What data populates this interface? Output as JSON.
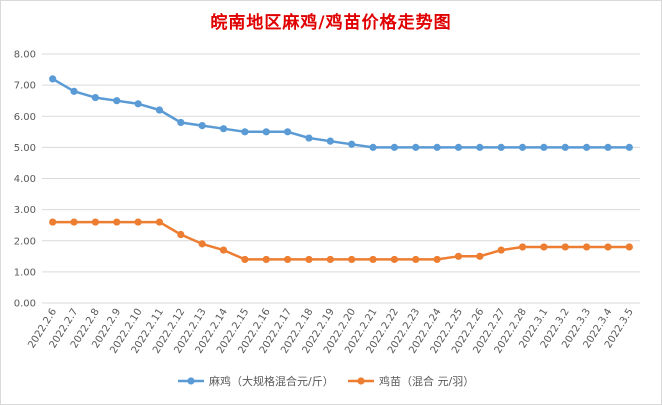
{
  "chart_data": {
    "type": "line",
    "title": "皖南地区麻鸡/鸡苗价格走势图",
    "categories": [
      "2022.2.6",
      "2022.2.7",
      "2022.2.8",
      "2022.2.9",
      "2022.2.10",
      "2022.2.11",
      "2022.2.12",
      "2022.2.13",
      "2022.2.14",
      "2022.2.15",
      "2022.2.16",
      "2022.2.17",
      "2022.2.18",
      "2022.2.19",
      "2022.2.20",
      "2022.2.21",
      "2022.2.22",
      "2022.2.23",
      "2022.2.24",
      "2022.2.25",
      "2022.2.26",
      "2022.2.27",
      "2022.2.28",
      "2022.3.1",
      "2022.3.2",
      "2022.3.3",
      "2022.3.4",
      "2022.3.5"
    ],
    "y_ticks": [
      "0.00",
      "1.00",
      "2.00",
      "3.00",
      "4.00",
      "5.00",
      "6.00",
      "7.00",
      "8.00"
    ],
    "ylim": [
      0,
      8
    ],
    "grid": true,
    "legend_position": "bottom",
    "series": [
      {
        "name": "麻鸡（大规格混合元/斤）",
        "color": "#5b9bd5",
        "values": [
          7.2,
          6.8,
          6.6,
          6.5,
          6.4,
          6.2,
          5.8,
          5.7,
          5.6,
          5.5,
          5.5,
          5.5,
          5.3,
          5.2,
          5.1,
          5.0,
          5.0,
          5.0,
          5.0,
          5.0,
          5.0,
          5.0,
          5.0,
          5.0,
          5.0,
          5.0,
          5.0,
          5.0
        ]
      },
      {
        "name": "鸡苗（混合 元/羽）",
        "color": "#ed7d31",
        "values": [
          2.6,
          2.6,
          2.6,
          2.6,
          2.6,
          2.6,
          2.2,
          1.9,
          1.7,
          1.4,
          1.4,
          1.4,
          1.4,
          1.4,
          1.4,
          1.4,
          1.4,
          1.4,
          1.4,
          1.5,
          1.5,
          1.7,
          1.8,
          1.8,
          1.8,
          1.8,
          1.8,
          1.8
        ]
      }
    ]
  }
}
